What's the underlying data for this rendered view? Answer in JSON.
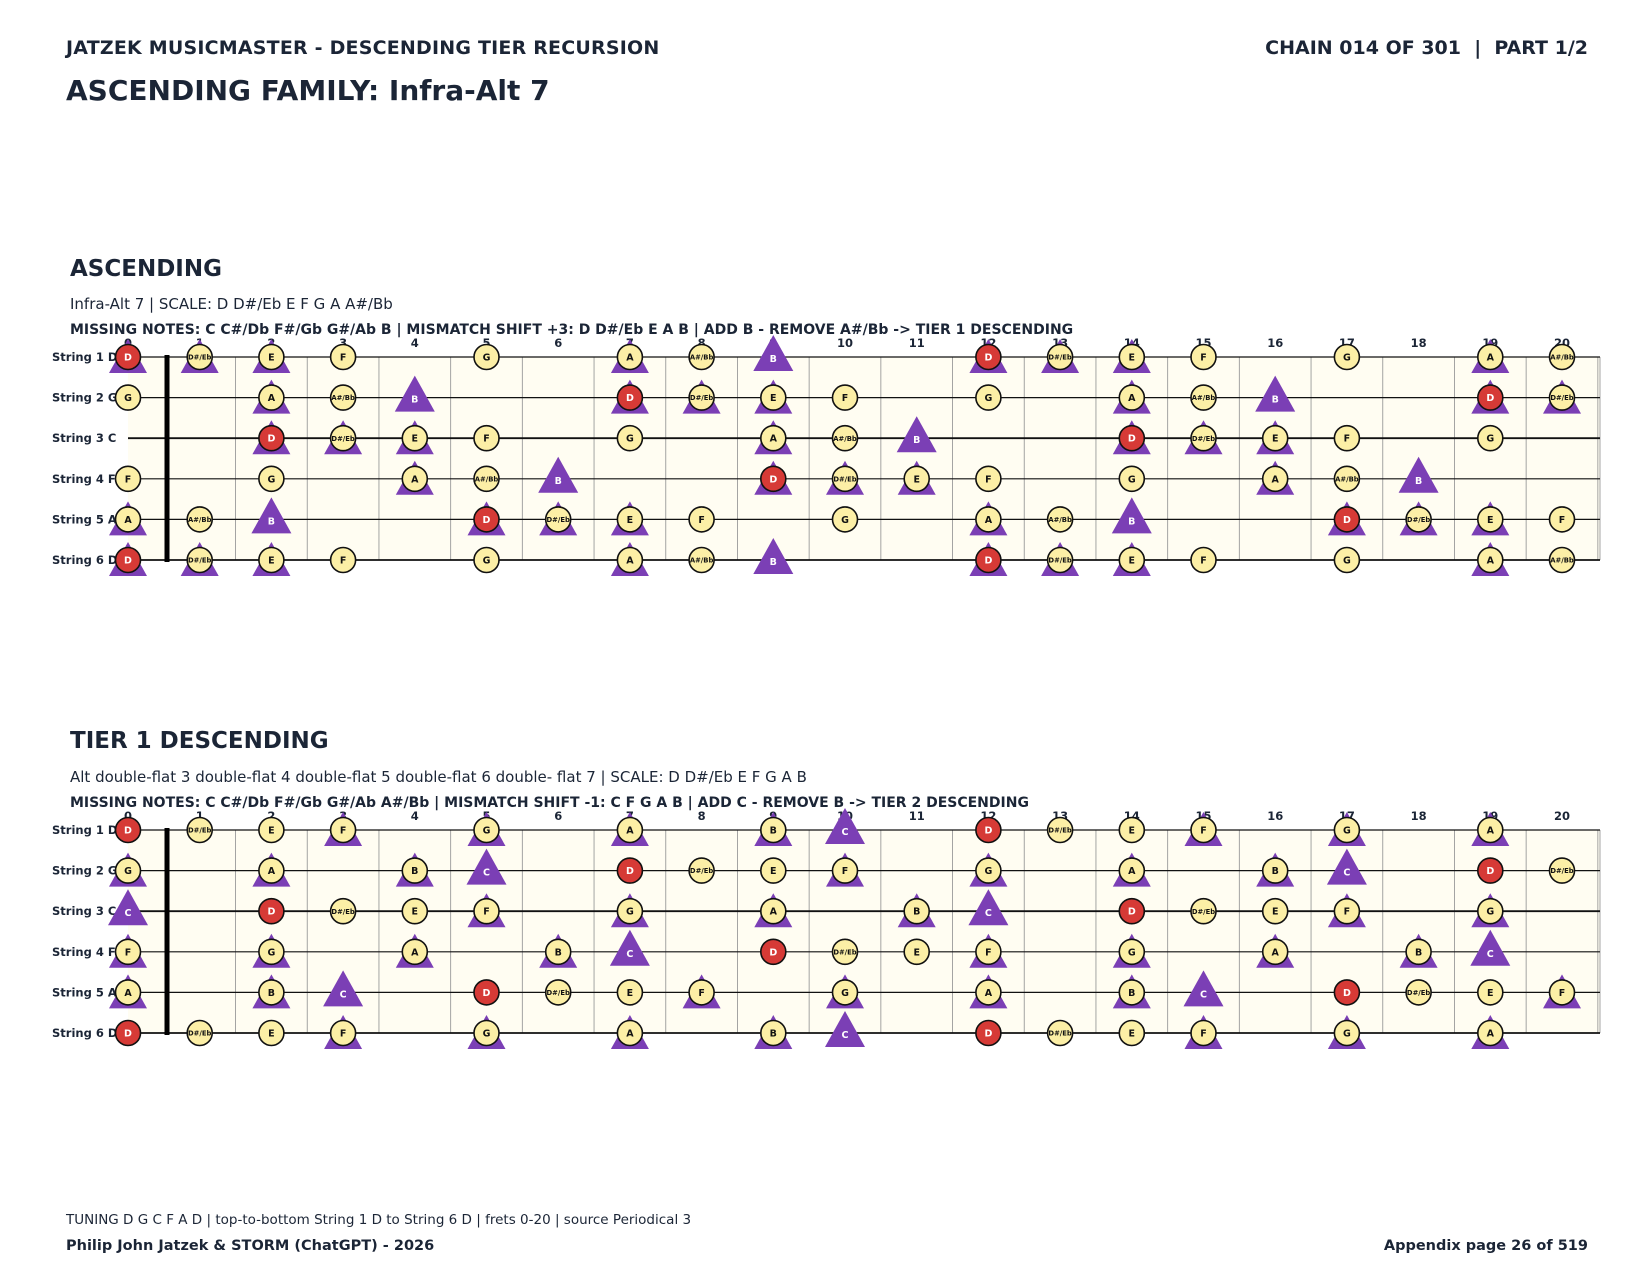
{
  "header": {
    "left": "JATZEK MUSICMASTER - DESCENDING TIER RECURSION",
    "right": "CHAIN 014 OF 301  |  PART 1/2",
    "family_title": "ASCENDING FAMILY: Infra-Alt 7"
  },
  "colors": {
    "root_fill": "#d63a36",
    "note_fill": "#fcefa6",
    "triangle": "#7b3fb5",
    "board_bg": "#fffdf2",
    "ink": "#1b2536"
  },
  "legend_symbols": {
    "root": "red circle",
    "scale_note": "yellow circle",
    "mismatch_shift": "purple triangle"
  },
  "fret_numbers": [
    "0",
    "1",
    "2",
    "3",
    "4",
    "5",
    "6",
    "7",
    "8",
    "9",
    "10",
    "11",
    "12",
    "13",
    "14",
    "15",
    "16",
    "17",
    "18",
    "19",
    "20"
  ],
  "sections": [
    {
      "title": "ASCENDING",
      "subtitle": "Infra-Alt 7  |  SCALE: D D#/Eb E F G A A#/Bb",
      "missing": "MISSING NOTES: C C#/Db F#/Gb G#/Ab B  |  MISMATCH SHIFT +3: D D#/Eb E A B  |  ADD B - REMOVE A#/Bb -> TIER 1 DESCENDING",
      "root": "D",
      "scale": [
        "D",
        "D#/Eb",
        "E",
        "F",
        "G",
        "A",
        "A#/Bb"
      ],
      "triangles": [
        "D",
        "D#/Eb",
        "E",
        "A",
        "B"
      ],
      "strings": [
        {
          "label": "String 1 D",
          "open": "D"
        },
        {
          "label": "String 2 G",
          "open": "G"
        },
        {
          "label": "String 3 C",
          "open": "C"
        },
        {
          "label": "String 4 F",
          "open": "F"
        },
        {
          "label": "String 5 A",
          "open": "A"
        },
        {
          "label": "String 6 D",
          "open": "D"
        }
      ]
    },
    {
      "title": "TIER 1 DESCENDING",
      "subtitle": "Alt double-flat 3 double-flat 4 double-flat 5 double-flat 6 double- flat 7  |  SCALE: D D#/Eb E F G A B",
      "missing": "MISSING NOTES: C C#/Db F#/Gb G#/Ab A#/Bb  |  MISMATCH SHIFT -1: C F G A B  |  ADD C - REMOVE B -> TIER 2 DESCENDING",
      "root": "D",
      "scale": [
        "D",
        "D#/Eb",
        "E",
        "F",
        "G",
        "A",
        "B"
      ],
      "triangles": [
        "C",
        "F",
        "G",
        "A",
        "B"
      ],
      "strings": [
        {
          "label": "String 1 D",
          "open": "D"
        },
        {
          "label": "String 2 G",
          "open": "G"
        },
        {
          "label": "String 3 C",
          "open": "C"
        },
        {
          "label": "String 4 F",
          "open": "F"
        },
        {
          "label": "String 5 A",
          "open": "A"
        },
        {
          "label": "String 6 D",
          "open": "D"
        }
      ]
    }
  ],
  "footer": {
    "note": "TUNING D G C F A D | top-to-bottom String 1 D to String 6 D | frets 0-20 | source Periodical 3",
    "left": "Philip John Jatzek & STORM (ChatGPT) - 2026",
    "right": "Appendix page 26 of 519"
  }
}
